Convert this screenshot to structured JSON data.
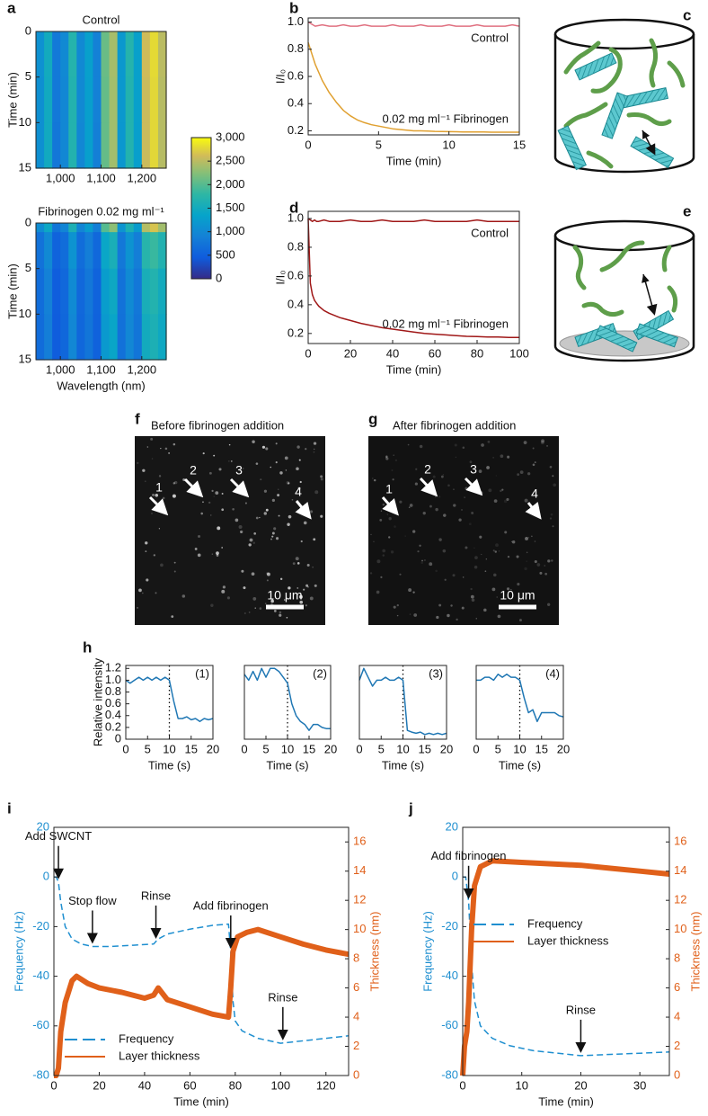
{
  "panel_labels": [
    "a",
    "b",
    "c",
    "d",
    "e",
    "f",
    "g",
    "h",
    "i",
    "j"
  ],
  "images": {
    "f": {
      "title": "Before fibrinogen addition",
      "scale_bar": "10 μm",
      "markers": [
        "1",
        "2",
        "3",
        "4"
      ]
    },
    "g": {
      "title": "After fibrinogen addition",
      "scale_bar": "10 μm",
      "markers": [
        "1",
        "2",
        "3",
        "4"
      ]
    }
  },
  "chart_data": [
    {
      "type": "heatmap",
      "title": "Control",
      "ylabel": "Time (min)",
      "x_bins": [
        940,
        960,
        980,
        1000,
        1020,
        1040,
        1060,
        1080,
        1100,
        1120,
        1140,
        1160,
        1180,
        1200,
        1220,
        1240,
        1260
      ],
      "y_bins": [
        0,
        1,
        5,
        10,
        15
      ],
      "z": [
        [
          1100,
          1500,
          800,
          1000,
          1700,
          1000,
          1300,
          900,
          2100,
          2400,
          1200,
          1700,
          1300,
          2600,
          2800,
          2500
        ],
        [
          1100,
          1500,
          800,
          1000,
          1700,
          1000,
          1300,
          900,
          2100,
          2400,
          1200,
          1700,
          1300,
          2600,
          2800,
          2500
        ],
        [
          1080,
          1480,
          800,
          980,
          1680,
          1000,
          1280,
          900,
          2080,
          2380,
          1200,
          1680,
          1300,
          2580,
          2780,
          2480
        ],
        [
          1080,
          1480,
          780,
          980,
          1680,
          980,
          1280,
          880,
          2080,
          2380,
          1180,
          1680,
          1280,
          2580,
          2780,
          2480
        ]
      ],
      "xlim": [
        940,
        1260
      ],
      "xticks": [
        {
          "value": 1000,
          "label": "1,000"
        },
        {
          "value": 1100,
          "label": "1,100"
        },
        {
          "value": 1200,
          "label": "1,200"
        }
      ],
      "ylim": [
        0,
        15
      ],
      "yticks": [
        0,
        5,
        10,
        15
      ],
      "y_reversed": true,
      "zlim": [
        0,
        3000
      ],
      "zticks": [
        0,
        500,
        {
          "value": 1000,
          "label": "1,000"
        },
        {
          "value": 1500,
          "label": "1,500"
        },
        {
          "value": 2000,
          "label": "2,000"
        },
        {
          "value": 2500,
          "label": "2,500"
        },
        {
          "value": 3000,
          "label": "3,000"
        }
      ]
    },
    {
      "type": "heatmap",
      "title": "Fibrinogen 0.02 mg ml⁻¹",
      "xlabel": "Wavelength (nm)",
      "ylabel": "Time (min)",
      "x_bins": [
        940,
        960,
        980,
        1000,
        1020,
        1040,
        1060,
        1080,
        1100,
        1120,
        1140,
        1160,
        1180,
        1200,
        1220,
        1240,
        1260
      ],
      "y_bins": [
        0,
        1,
        5,
        10,
        15
      ],
      "z": [
        [
          1050,
          1430,
          760,
          950,
          1620,
          950,
          1240,
          860,
          2000,
          2280,
          1140,
          1620,
          1240,
          2470,
          2660,
          2380
        ],
        [
          720,
          1000,
          530,
          660,
          1130,
          660,
          860,
          600,
          1390,
          1580,
          790,
          1130,
          860,
          1720,
          1850,
          1660
        ],
        [
          660,
          900,
          480,
          600,
          1020,
          600,
          780,
          540,
          1260,
          1440,
          720,
          1020,
          780,
          1560,
          1680,
          1500
        ],
        [
          640,
          860,
          460,
          580,
          980,
          580,
          750,
          520,
          1210,
          1380,
          700,
          980,
          750,
          1500,
          1610,
          1440
        ]
      ],
      "xlim": [
        940,
        1260
      ],
      "xticks": [
        {
          "value": 1000,
          "label": "1,000"
        },
        {
          "value": 1100,
          "label": "1,100"
        },
        {
          "value": 1200,
          "label": "1,200"
        }
      ],
      "ylim": [
        0,
        15
      ],
      "yticks": [
        0,
        5,
        10,
        15
      ],
      "y_reversed": true
    },
    {
      "type": "line",
      "xlabel": "Time (min)",
      "ylabel": "I/I₀",
      "x": [
        0,
        0.5,
        1,
        1.5,
        2,
        2.5,
        3,
        3.5,
        4,
        4.5,
        5,
        5.5,
        6,
        6.5,
        7,
        7.5,
        8,
        8.5,
        9,
        9.5,
        10,
        10.5,
        11,
        11.5,
        12,
        12.5,
        13,
        13.5,
        14,
        14.5,
        15
      ],
      "series": [
        {
          "name": "Control",
          "color": "#e07080",
          "values": [
            1.0,
            0.97,
            0.98,
            0.97,
            0.97,
            0.98,
            0.97,
            0.97,
            0.98,
            0.97,
            0.97,
            0.97,
            0.98,
            0.97,
            0.97,
            0.97,
            0.98,
            0.97,
            0.97,
            0.97,
            0.98,
            0.97,
            0.97,
            0.97,
            0.98,
            0.97,
            0.97,
            0.97,
            0.97,
            0.98,
            0.97
          ]
        },
        {
          "name": "0.02 mg ml⁻¹ Fibrinogen",
          "color": "#e0a030",
          "values": [
            0.85,
            0.69,
            0.57,
            0.48,
            0.41,
            0.35,
            0.31,
            0.28,
            0.26,
            0.245,
            0.235,
            0.225,
            0.215,
            0.21,
            0.205,
            0.2,
            0.2,
            0.198,
            0.196,
            0.195,
            0.194,
            0.193,
            0.192,
            0.192,
            0.191,
            0.191,
            0.19,
            0.19,
            0.19,
            0.19,
            0.19
          ]
        }
      ],
      "xlim": [
        0,
        15
      ],
      "xticks": [
        0,
        5,
        10,
        15
      ],
      "ylim": [
        0.17,
        1.03
      ],
      "yticks": [
        0.2,
        0.4,
        0.6,
        0.8,
        {
          "value": 1,
          "label": "1.0"
        }
      ]
    },
    {
      "type": "line",
      "xlabel": "Time (min)",
      "ylabel": "I/I₀",
      "x": [
        0,
        1,
        2,
        3,
        4,
        5,
        7.5,
        10,
        15,
        20,
        25,
        30,
        35,
        40,
        45,
        50,
        55,
        60,
        65,
        70,
        75,
        80,
        85,
        90,
        95,
        100
      ],
      "series": [
        {
          "name": "Control",
          "color": "#a01818",
          "values": [
            1.0,
            0.99,
            0.98,
            0.99,
            0.98,
            0.98,
            0.99,
            0.98,
            0.98,
            0.99,
            0.98,
            0.98,
            0.99,
            0.98,
            0.98,
            0.98,
            0.99,
            0.98,
            0.98,
            0.98,
            0.98,
            0.99,
            0.98,
            0.98,
            0.98,
            0.98
          ]
        },
        {
          "name": "0.02 mg ml⁻¹ Fibrinogen",
          "color": "#a01818",
          "values": [
            1.0,
            0.55,
            0.47,
            0.43,
            0.41,
            0.39,
            0.36,
            0.34,
            0.31,
            0.29,
            0.27,
            0.255,
            0.24,
            0.23,
            0.22,
            0.21,
            0.2,
            0.195,
            0.19,
            0.185,
            0.18,
            0.178,
            0.175,
            0.175,
            0.172,
            0.172
          ]
        }
      ],
      "xlim": [
        0,
        100
      ],
      "xticks": [
        0,
        20,
        40,
        60,
        80,
        100
      ],
      "ylim": [
        0.13,
        1.05
      ],
      "yticks": [
        0.2,
        0.4,
        0.6,
        0.8,
        {
          "value": 1,
          "label": "1.0"
        }
      ]
    },
    {
      "type": "line",
      "label": "(1)",
      "xlabel": "Time (s)",
      "ylabel": "Relative intensity",
      "vline": 10,
      "x": [
        0,
        1,
        2,
        3,
        4,
        5,
        6,
        7,
        8,
        9,
        10,
        11,
        12,
        13,
        14,
        15,
        16,
        17,
        18,
        19,
        20
      ],
      "series": [
        {
          "color": "#1f77b4",
          "values": [
            1.0,
            0.95,
            1.0,
            1.05,
            1.0,
            1.05,
            1.0,
            1.05,
            1.0,
            1.05,
            1.0,
            0.65,
            0.35,
            0.35,
            0.38,
            0.33,
            0.35,
            0.3,
            0.35,
            0.33,
            0.35
          ]
        }
      ],
      "xlim": [
        0,
        20
      ],
      "xticks": [
        0,
        5,
        10,
        15,
        20
      ],
      "ylim": [
        0,
        1.25
      ],
      "yticks": [
        0,
        0.2,
        0.4,
        0.6,
        0.8,
        {
          "value": 1,
          "label": "1.0"
        },
        1.2
      ]
    },
    {
      "type": "line",
      "label": "(2)",
      "xlabel": "Time (s)",
      "vline": 10,
      "x": [
        0,
        1,
        2,
        3,
        4,
        5,
        6,
        7,
        8,
        9,
        10,
        11,
        12,
        13,
        14,
        15,
        16,
        17,
        18,
        19,
        20
      ],
      "series": [
        {
          "color": "#1f77b4",
          "values": [
            1.1,
            1.0,
            1.15,
            1.0,
            1.2,
            1.05,
            1.2,
            1.2,
            1.15,
            1.05,
            0.95,
            0.6,
            0.4,
            0.3,
            0.25,
            0.15,
            0.25,
            0.25,
            0.2,
            0.18,
            0.18
          ]
        }
      ],
      "xlim": [
        0,
        20
      ],
      "xticks": [
        0,
        5,
        10,
        15,
        20
      ],
      "ylim": [
        0,
        1.25
      ]
    },
    {
      "type": "line",
      "label": "(3)",
      "xlabel": "Time (s)",
      "vline": 10,
      "x": [
        0,
        1,
        2,
        3,
        4,
        5,
        6,
        7,
        8,
        9,
        10,
        11,
        12,
        13,
        14,
        15,
        16,
        17,
        18,
        19,
        20
      ],
      "series": [
        {
          "color": "#1f77b4",
          "values": [
            1.0,
            1.2,
            1.05,
            0.9,
            1.0,
            1.0,
            1.05,
            1.0,
            1.0,
            1.05,
            1.0,
            0.15,
            0.12,
            0.1,
            0.12,
            0.08,
            0.1,
            0.08,
            0.1,
            0.08,
            0.1
          ]
        }
      ],
      "xlim": [
        0,
        20
      ],
      "xticks": [
        0,
        5,
        10,
        15,
        20
      ],
      "ylim": [
        0,
        1.25
      ]
    },
    {
      "type": "line",
      "label": "(4)",
      "xlabel": "Time (s)",
      "vline": 10,
      "x": [
        0,
        1,
        2,
        3,
        4,
        5,
        6,
        7,
        8,
        9,
        10,
        11,
        12,
        13,
        14,
        15,
        16,
        17,
        18,
        19,
        20
      ],
      "series": [
        {
          "color": "#1f77b4",
          "values": [
            1.0,
            1.0,
            1.05,
            1.05,
            1.0,
            1.1,
            1.05,
            1.1,
            1.05,
            1.05,
            1.0,
            0.7,
            0.45,
            0.5,
            0.3,
            0.45,
            0.45,
            0.45,
            0.45,
            0.4,
            0.38
          ]
        }
      ],
      "xlim": [
        0,
        20
      ],
      "xticks": [
        0,
        5,
        10,
        15,
        20
      ],
      "ylim": [
        0,
        1.25
      ]
    },
    {
      "type": "line",
      "xlabel": "Time (min)",
      "ylabel": "Frequency (Hz)",
      "y2label": "Thickness (nm)",
      "legend": "lower left",
      "series": [
        {
          "name": "Frequency",
          "color": "#1f8fd0",
          "line_style": "dashed",
          "x": [
            0,
            1,
            2,
            3,
            5,
            8,
            12,
            17,
            25,
            35,
            44,
            46,
            50,
            60,
            70,
            77,
            78,
            79,
            80,
            83,
            90,
            100,
            110,
            120,
            130
          ],
          "values": [
            0,
            0,
            -2,
            -10,
            -20,
            -25,
            -27,
            -28,
            -28,
            -27.5,
            -27,
            -25,
            -23,
            -21,
            -19.5,
            -19,
            -30,
            -50,
            -58,
            -62,
            -65,
            -67,
            -66,
            -65,
            -64
          ]
        },
        {
          "name": "Layer thickness",
          "color": "#e0601a",
          "line_style": "noisy",
          "axis": "y2",
          "x": [
            0,
            1,
            2,
            3,
            5,
            8,
            10,
            15,
            20,
            30,
            40,
            44,
            46,
            50,
            60,
            70,
            77,
            78,
            79,
            81,
            85,
            90,
            100,
            110,
            120,
            130
          ],
          "values": [
            0,
            0,
            0.5,
            3,
            5,
            6.5,
            6.8,
            6.3,
            6,
            5.7,
            5.3,
            5.5,
            6,
            5.2,
            4.7,
            4.2,
            4,
            6,
            8.5,
            9.5,
            9.8,
            10,
            9.5,
            9,
            8.6,
            8.3
          ]
        }
      ],
      "annotations": [
        {
          "text": "Add SWCNT",
          "x": 2
        },
        {
          "text": "Stop flow",
          "x": 17
        },
        {
          "text": "Rinse",
          "x": 45
        },
        {
          "text": "Add fibrinogen",
          "x": 78
        },
        {
          "text": "Rinse",
          "x": 101
        }
      ],
      "xlim": [
        0,
        130
      ],
      "xticks": [
        0,
        20,
        40,
        60,
        80,
        100,
        120
      ],
      "ylim": [
        -80,
        20
      ],
      "yticks": [
        -80,
        -60,
        -40,
        -20,
        0,
        20
      ],
      "y2lim": [
        0,
        17
      ],
      "y2ticks": [
        0,
        2,
        4,
        6,
        8,
        10,
        12,
        14,
        16
      ]
    },
    {
      "type": "line",
      "xlabel": "Time (min)",
      "ylabel": "Frequency (Hz)",
      "y2label": "Thickness (nm)",
      "legend": "center left",
      "series": [
        {
          "name": "Frequency",
          "color": "#1f8fd0",
          "line_style": "dashed",
          "x": [
            0,
            0.5,
            1,
            1.5,
            2,
            3,
            5,
            8,
            12,
            20,
            25,
            30,
            35
          ],
          "values": [
            0,
            0,
            -10,
            -35,
            -50,
            -60,
            -65,
            -68,
            -70,
            -72,
            -71.5,
            -71,
            -70.5
          ]
        },
        {
          "name": "Layer thickness",
          "color": "#e0601a",
          "line_style": "noisy",
          "axis": "y2",
          "x": [
            0,
            0.3,
            0.7,
            1,
            1.5,
            2,
            3,
            5,
            10,
            15,
            20,
            25,
            30,
            35
          ],
          "values": [
            0,
            2,
            3,
            5,
            10,
            13,
            14.3,
            14.7,
            14.6,
            14.5,
            14.4,
            14.2,
            14,
            13.8
          ]
        }
      ],
      "annotations": [
        {
          "text": "Add fibrinogen",
          "x": 1
        },
        {
          "text": "Rinse",
          "x": 20
        }
      ],
      "xlim": [
        0,
        35
      ],
      "xticks": [
        0,
        10,
        20,
        30
      ],
      "ylim": [
        -80,
        20
      ],
      "yticks": [
        -80,
        -60,
        -40,
        -20,
        0,
        20
      ],
      "y2lim": [
        0,
        17
      ],
      "y2ticks": [
        0,
        2,
        4,
        6,
        8,
        10,
        12,
        14,
        16
      ]
    }
  ]
}
